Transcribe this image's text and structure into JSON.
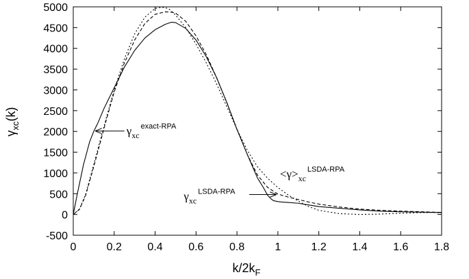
{
  "chart_data": {
    "type": "line",
    "xlabel": "k/2k",
    "xlabel_sub": "F",
    "ylabel_main": "γ",
    "ylabel_sub": "xc",
    "ylabel_tail": "(k)",
    "xlim": [
      0,
      1.8
    ],
    "ylim": [
      -500,
      5000
    ],
    "xticks": [
      "0",
      "0.2",
      "0.4",
      "0.6",
      "0.8",
      "1",
      "1.2",
      "1.4",
      "1.6",
      "1.8"
    ],
    "yticks": [
      "-500",
      "0",
      "500",
      "1000",
      "1500",
      "2000",
      "2500",
      "3000",
      "3500",
      "4000",
      "4500",
      "5000"
    ],
    "grid": false,
    "series": [
      {
        "dash": "solid",
        "x": [
          0,
          0.02,
          0.05,
          0.08,
          0.1,
          0.12,
          0.15,
          0.2,
          0.25,
          0.3,
          0.35,
          0.4,
          0.45,
          0.48,
          0.5,
          0.55,
          0.6,
          0.65,
          0.7,
          0.75,
          0.8,
          0.85,
          0.9,
          0.93,
          0.95,
          0.97,
          0.98,
          0.99,
          1.0,
          1.02,
          1.05,
          1.1,
          1.15,
          1.2,
          1.3,
          1.4,
          1.5,
          1.6,
          1.7,
          1.8
        ],
        "y": [
          0,
          500,
          1200,
          1750,
          2000,
          2200,
          2550,
          3050,
          3550,
          3950,
          4250,
          4450,
          4580,
          4630,
          4620,
          4480,
          4200,
          3800,
          3300,
          2700,
          2050,
          1450,
          880,
          640,
          460,
          360,
          330,
          320,
          310,
          300,
          290,
          270,
          230,
          190,
          150,
          110,
          80,
          65,
          55,
          45
        ]
      },
      {
        "dash": "dashed",
        "x": [
          0,
          0.03,
          0.06,
          0.1,
          0.13,
          0.16,
          0.2,
          0.25,
          0.3,
          0.35,
          0.4,
          0.45,
          0.48,
          0.5,
          0.55,
          0.6,
          0.65,
          0.7,
          0.75,
          0.8,
          0.85,
          0.9,
          0.95,
          1.0,
          1.05,
          1.1,
          1.15,
          1.2,
          1.3,
          1.4,
          1.5,
          1.6,
          1.7,
          1.8
        ],
        "y": [
          0,
          120,
          450,
          1150,
          1700,
          2250,
          2950,
          3650,
          4200,
          4600,
          4820,
          4880,
          4870,
          4850,
          4650,
          4300,
          3850,
          3300,
          2700,
          2050,
          1450,
          950,
          650,
          490,
          420,
          360,
          300,
          250,
          180,
          130,
          100,
          80,
          65,
          50
        ]
      },
      {
        "dash": "dotted",
        "x": [
          0,
          0.03,
          0.06,
          0.1,
          0.13,
          0.16,
          0.2,
          0.25,
          0.3,
          0.35,
          0.4,
          0.43,
          0.45,
          0.47,
          0.5,
          0.55,
          0.6,
          0.65,
          0.7,
          0.75,
          0.8,
          0.85,
          0.9,
          0.95,
          1.0,
          1.05,
          1.1,
          1.15,
          1.2,
          1.3,
          1.4,
          1.5,
          1.6,
          1.7,
          1.8
        ],
        "y": [
          0,
          130,
          480,
          1200,
          1750,
          2300,
          3000,
          3750,
          4350,
          4750,
          4960,
          4990,
          4980,
          4940,
          4800,
          4500,
          4100,
          3650,
          3150,
          2600,
          2050,
          1550,
          1150,
          870,
          650,
          470,
          320,
          190,
          100,
          20,
          0,
          10,
          30,
          45,
          50
        ]
      }
    ],
    "annotations": [
      {
        "main": "γ",
        "sub": "xc",
        "sup": "exact-RPA",
        "text_x": 0.26,
        "text_y": 1920,
        "arrow_from": [
          0.25,
          2010
        ],
        "arrow_to": [
          0.11,
          2010
        ]
      },
      {
        "main": "γ",
        "sub": "xc",
        "sup": "LSDA-RPA",
        "text_x": 0.54,
        "text_y": 350,
        "arrow_from": [
          0.86,
          480
        ],
        "arrow_to": [
          0.99,
          480
        ]
      },
      {
        "main": "<γ>",
        "sub": "xc",
        "sup": "LSDA-RPA",
        "text_x": 1.01,
        "text_y": 880,
        "arrow_from": null,
        "arrow_to": null
      }
    ]
  }
}
